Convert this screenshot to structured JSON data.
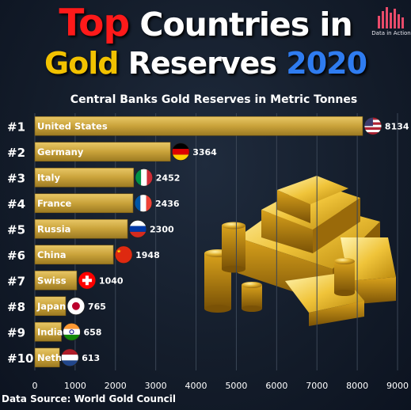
{
  "title": {
    "word1": "Top",
    "rest1": " Countries in",
    "word2": "Gold",
    "rest2": " Reserves ",
    "year": "2020"
  },
  "logo_text": "Data in Action",
  "source": "Data Source: World Gold Council",
  "colors": {
    "bar": "#c9a23a",
    "title_red": "#ff1a1a",
    "title_gold": "#f2c200",
    "title_blue": "#2f7cf0"
  },
  "chart_data": {
    "type": "bar",
    "orientation": "horizontal",
    "title": "Central Banks Gold Reserves in Metric Tonnes",
    "categories": [
      "United States",
      "Germany",
      "Italy",
      "France",
      "Russia",
      "China",
      "Swiss",
      "Japan",
      "India",
      "Neth"
    ],
    "ranks": [
      "#1",
      "#2",
      "#3",
      "#4",
      "#5",
      "#6",
      "#7",
      "#8",
      "#9",
      "#10"
    ],
    "values": [
      8134,
      3364,
      2452,
      2436,
      2300,
      1948,
      1040,
      765,
      658,
      613
    ],
    "flags": [
      "us-flag-icon",
      "germany-flag-icon",
      "italy-flag-icon",
      "france-flag-icon",
      "russia-flag-icon",
      "china-flag-icon",
      "swiss-flag-icon",
      "japan-flag-icon",
      "india-flag-icon",
      "netherlands-flag-icon"
    ],
    "xticks": [
      "0",
      "1000",
      "2000",
      "3000",
      "4000",
      "5000",
      "6000",
      "7000",
      "8000",
      "9000"
    ],
    "xlim": [
      0,
      9000
    ],
    "grid": true
  }
}
